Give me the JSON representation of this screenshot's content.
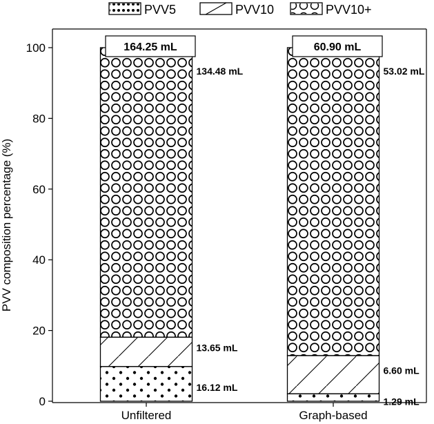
{
  "chart_data": {
    "type": "bar",
    "stacked": true,
    "categories": [
      "Unfiltered",
      "Graph-based"
    ],
    "ylabel": "PVV composition percentage (%)",
    "xlabel": "",
    "ylim": [
      0,
      100
    ],
    "yticks": [
      "0",
      "20",
      "40",
      "60",
      "80",
      "100"
    ],
    "legend_position": "top",
    "series": [
      {
        "name": "PVV5",
        "pattern": "dots",
        "values": [
          9.8,
          2.1
        ],
        "labels": [
          "16.12 mL",
          "1.29 mL"
        ]
      },
      {
        "name": "PVV10",
        "pattern": "diagonal-hatch",
        "values": [
          8.3,
          10.8
        ],
        "labels": [
          "13.65 mL",
          "6.60 mL"
        ]
      },
      {
        "name": "PVV10+",
        "pattern": "circles",
        "values": [
          81.9,
          87.1
        ],
        "labels": [
          "134.48 mL",
          "53.02 mL"
        ]
      }
    ],
    "totals": [
      "164.25 mL",
      "60.90 mL"
    ],
    "colors": {
      "fill": "#ffffff",
      "stroke": "#000000"
    }
  }
}
